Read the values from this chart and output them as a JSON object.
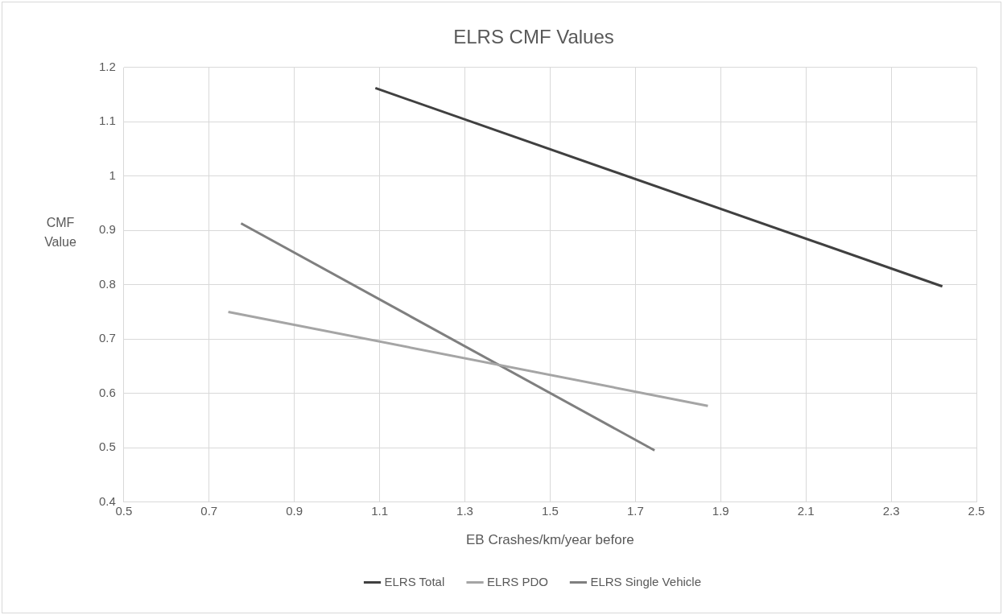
{
  "chart_data": {
    "type": "line",
    "title": "ELRS CMF Values",
    "xlabel": "EB Crashes/km/year before",
    "ylabel": "CMF Value",
    "xlim": [
      0.5,
      2.5
    ],
    "xticks": [
      0.5,
      0.7,
      0.9,
      1.1,
      1.3,
      1.5,
      1.7,
      1.9,
      2.1,
      2.3,
      2.5
    ],
    "ylim": [
      0.4,
      1.2
    ],
    "yticks": [
      0.4,
      0.5,
      0.6,
      0.7,
      0.8,
      0.9,
      1,
      1.1,
      1.2
    ],
    "grid": true,
    "legend": "bottom",
    "marker": "none",
    "line_style": "solid",
    "series": [
      {
        "name": "ELRS Total",
        "color": "#404040",
        "x": [
          1.09,
          2.42
        ],
        "values": [
          1.162,
          0.797
        ]
      },
      {
        "name": "ELRS PDO",
        "color": "#a5a5a5",
        "x": [
          0.745,
          1.87
        ],
        "values": [
          0.75,
          0.577
        ]
      },
      {
        "name": "ELRS Single Vehicle",
        "color": "#7f7f7f",
        "x": [
          0.775,
          1.745
        ],
        "values": [
          0.913,
          0.495
        ]
      }
    ]
  }
}
